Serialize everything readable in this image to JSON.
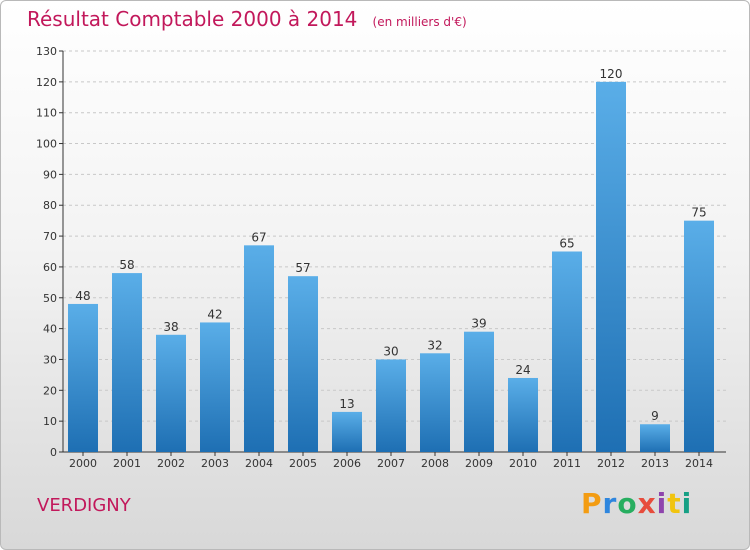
{
  "header": {
    "title": "Résultat Comptable 2000 à 2014",
    "unit": "(en milliers d'€)"
  },
  "footer": {
    "commune": "VERDIGNY",
    "logo": "Proxiti"
  },
  "colors": {
    "title": "#c2185b",
    "bar_top": "#5aaee8",
    "bar_bottom": "#1e6fb3"
  },
  "chart_data": {
    "type": "bar",
    "title": "Résultat Comptable 2000 à 2014",
    "subtitle": "(en milliers d'€)",
    "xlabel": "",
    "ylabel": "",
    "categories": [
      "2000",
      "2001",
      "2002",
      "2003",
      "2004",
      "2005",
      "2006",
      "2007",
      "2008",
      "2009",
      "2010",
      "2011",
      "2012",
      "2013",
      "2014"
    ],
    "values": [
      48,
      58,
      38,
      42,
      67,
      57,
      13,
      30,
      32,
      39,
      24,
      65,
      120,
      9,
      75
    ],
    "ylim": [
      0,
      130
    ],
    "yticks": [
      0,
      10,
      20,
      30,
      40,
      50,
      60,
      70,
      80,
      90,
      100,
      110,
      120,
      130
    ],
    "grid": true
  }
}
